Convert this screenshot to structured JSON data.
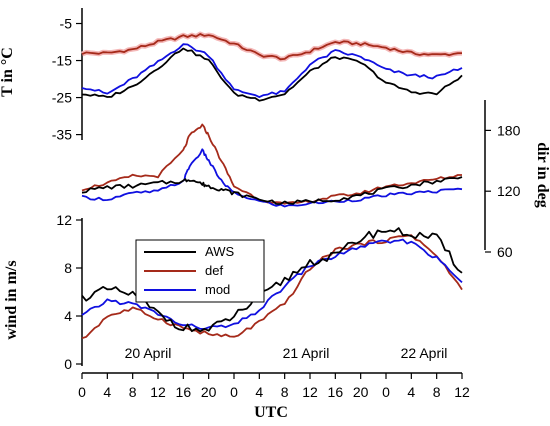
{
  "colors": {
    "AWS": "#000000",
    "def": "#a52a1a",
    "mod": "#1010e0",
    "def_halo": "#f4b8b8"
  },
  "chart_data": [
    {
      "type": "line",
      "ylabel": "T in °C",
      "ylim": [
        -37,
        0
      ],
      "yticks": [
        -35,
        -25,
        -15,
        -5
      ],
      "tick_labels": [
        "-35",
        "-25",
        "-15",
        "-5"
      ],
      "x_hours": [
        0,
        4,
        8,
        12,
        16,
        20,
        24,
        28,
        32,
        36,
        40,
        44,
        48,
        52,
        56,
        60
      ],
      "series": [
        {
          "name": "AWS",
          "values": [
            -24,
            -25,
            -22,
            -17,
            -11.5,
            -15,
            -24,
            -25.5,
            -24,
            -18,
            -14,
            -15.5,
            -21,
            -23.5,
            -24,
            -19
          ]
        },
        {
          "name": "def",
          "values": [
            -13,
            -13,
            -12,
            -10,
            -8.5,
            -8,
            -10.5,
            -13.5,
            -14.5,
            -12.5,
            -10,
            -10.5,
            -11.5,
            -13,
            -13.5,
            -13
          ]
        },
        {
          "name": "mod",
          "values": [
            -22,
            -24,
            -20,
            -15.5,
            -10.5,
            -13.5,
            -23,
            -24.5,
            -23.5,
            -16,
            -12.5,
            -14,
            -17.5,
            -19,
            -19.5,
            -17
          ]
        }
      ]
    },
    {
      "type": "line",
      "ylabel": "dir in deg",
      "ylim": [
        60,
        210
      ],
      "yticks": [
        60,
        120,
        180
      ],
      "tick_labels": [
        "60",
        "120",
        "180"
      ],
      "x_hours": [
        0,
        4,
        8,
        12,
        16,
        17,
        19,
        20,
        22,
        24,
        28,
        32,
        36,
        40,
        44,
        48,
        52,
        56,
        60
      ],
      "series": [
        {
          "name": "AWS",
          "values": [
            120,
            124,
            125,
            128,
            130,
            132,
            127,
            125,
            122,
            118,
            112,
            108,
            110,
            112,
            116,
            122,
            126,
            130,
            134
          ]
        },
        {
          "name": "def",
          "values": [
            122,
            128,
            135,
            135,
            160,
            175,
            185,
            175,
            150,
            125,
            112,
            107,
            110,
            115,
            118,
            125,
            128,
            132,
            136
          ]
        },
        {
          "name": "mod",
          "values": [
            114,
            112,
            118,
            120,
            130,
            145,
            160,
            150,
            130,
            118,
            110,
            105,
            108,
            110,
            112,
            116,
            118,
            120,
            122
          ]
        }
      ]
    },
    {
      "type": "line",
      "xlabel": "UTC",
      "ylabel": "wind in m/s",
      "ylim": [
        0,
        12
      ],
      "yticks": [
        0,
        4,
        8,
        12
      ],
      "tick_labels": [
        "0",
        "4",
        "8",
        "12"
      ],
      "x_tick_hours": [
        0,
        4,
        8,
        12,
        16,
        20,
        24,
        28,
        32,
        36,
        40,
        44,
        48,
        52,
        56,
        60
      ],
      "x_tick_labels": [
        "0",
        "4",
        "8",
        "12",
        "16",
        "20",
        "0",
        "4",
        "8",
        "12",
        "16",
        "20",
        "0",
        "4",
        "8",
        "12"
      ],
      "x_hours": [
        0,
        4,
        8,
        12,
        16,
        20,
        24,
        28,
        32,
        36,
        40,
        44,
        48,
        52,
        56,
        60
      ],
      "series": [
        {
          "name": "AWS",
          "values": [
            5.5,
            6.2,
            5.8,
            4.2,
            3.0,
            2.8,
            4.0,
            5.5,
            7.0,
            8.5,
            9.0,
            10.5,
            11.2,
            10.8,
            10.5,
            7.6
          ]
        },
        {
          "name": "def",
          "values": [
            2.0,
            4.0,
            4.6,
            3.8,
            3.0,
            2.5,
            2.2,
            3.5,
            5.0,
            8.0,
            9.5,
            10.0,
            10.3,
            10.8,
            9.0,
            6.2
          ]
        },
        {
          "name": "mod",
          "values": [
            4.0,
            5.3,
            5.0,
            4.2,
            3.2,
            3.0,
            3.2,
            4.5,
            6.5,
            8.2,
            9.0,
            9.8,
            10.2,
            10.2,
            8.8,
            6.8
          ]
        }
      ],
      "date_labels": [
        "20 April",
        "21 April",
        "22 April"
      ],
      "legend": {
        "entries": [
          "AWS",
          "def",
          "mod"
        ],
        "position": "top-left"
      }
    }
  ]
}
